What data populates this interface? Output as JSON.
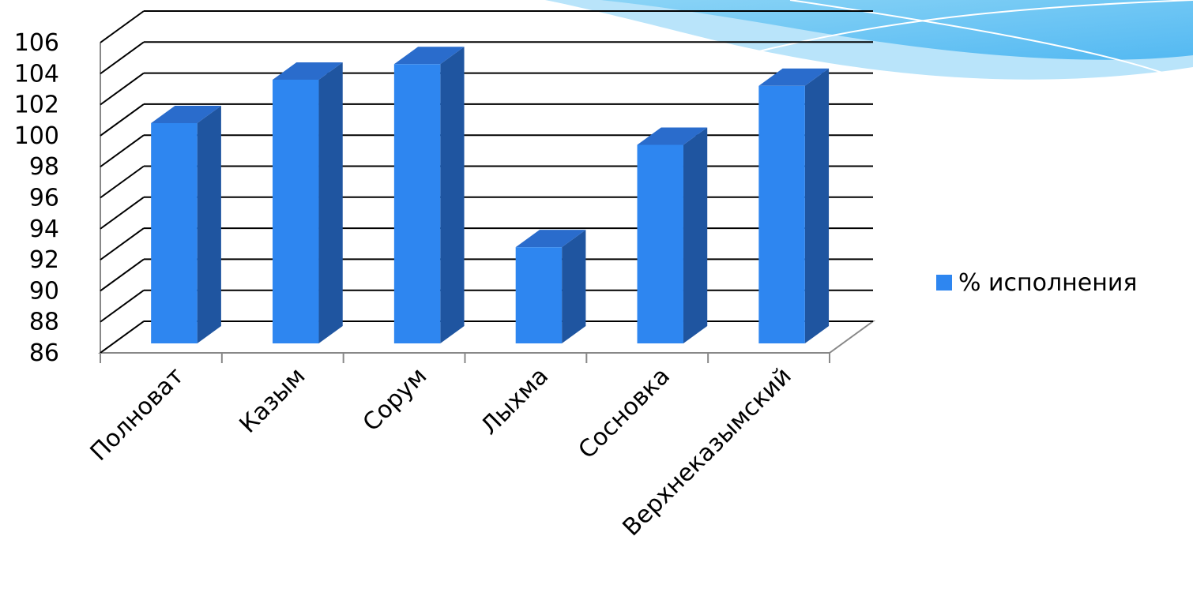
{
  "chart_data": {
    "type": "bar3d",
    "categories": [
      "Полноват",
      "Казым",
      "Сорум",
      "Лыхма",
      "Сосновка",
      "Верхнеказымский"
    ],
    "series": [
      {
        "name": "% исполнения",
        "color": "#2e86f0",
        "values": [
          100.2,
          103.0,
          104.0,
          92.2,
          98.8,
          102.6
        ]
      }
    ],
    "ylim": [
      86,
      106
    ],
    "yticks": [
      86,
      88,
      90,
      92,
      94,
      96,
      98,
      100,
      102,
      104,
      106
    ],
    "grid": true,
    "legend": "right"
  }
}
